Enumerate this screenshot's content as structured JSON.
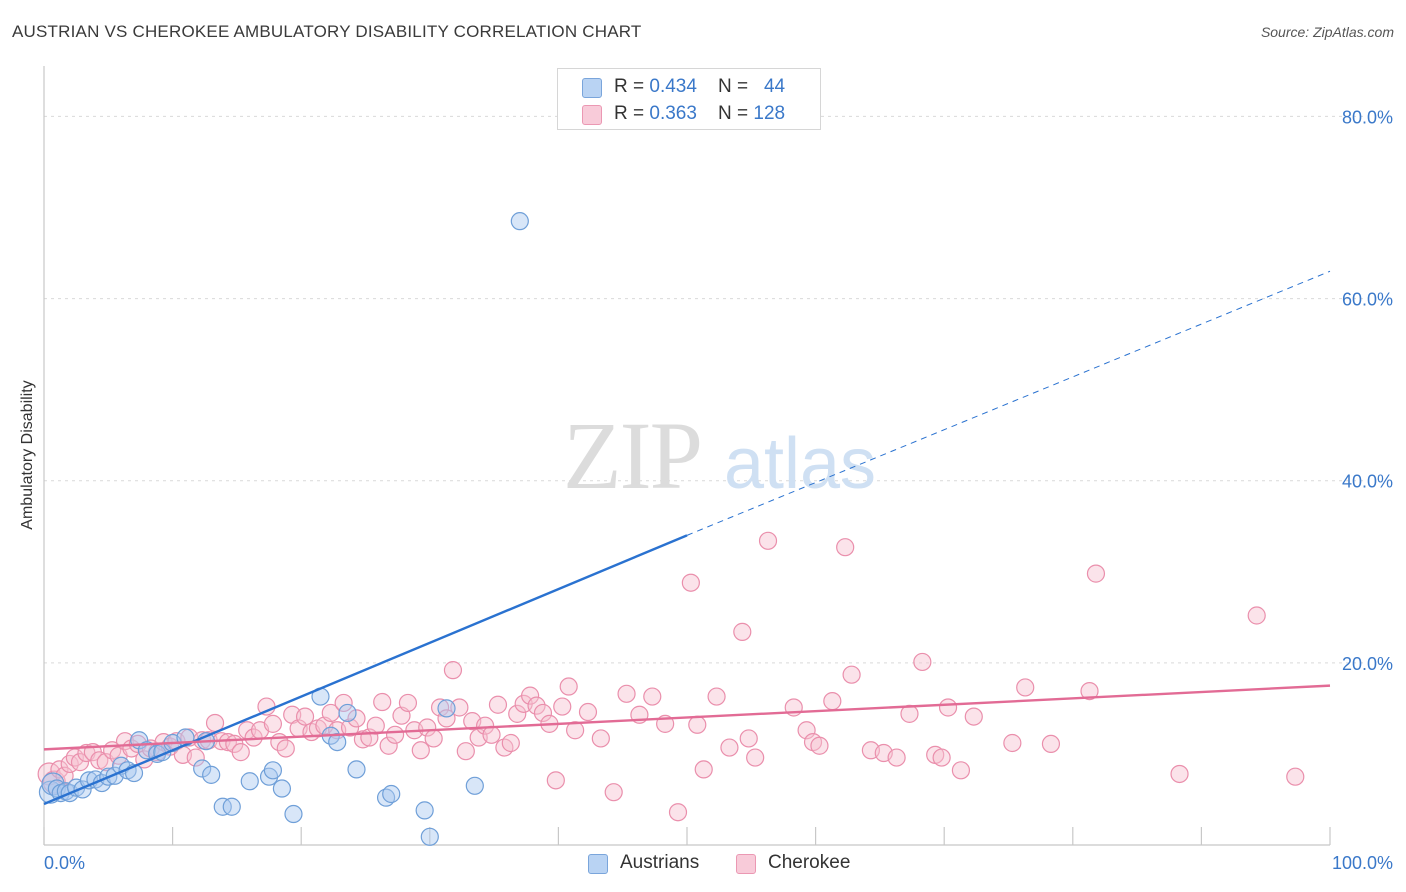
{
  "header": {
    "title": "AUSTRIAN VS CHEROKEE AMBULATORY DISABILITY CORRELATION CHART",
    "source": "Source: ZipAtlas.com"
  },
  "watermark": {
    "zip": "ZIP",
    "atlas": "atlas"
  },
  "legend_top": {
    "austrians": {
      "r_label": "R = ",
      "r_value": "0.434",
      "n_label": "N = ",
      "n_value": "44"
    },
    "cherokee": {
      "r_label": "R = ",
      "r_value": "0.363",
      "n_label": "N = ",
      "n_value": "128"
    }
  },
  "legend_bottom": {
    "austrians": "Austrians",
    "cherokee": "Cherokee"
  },
  "colors": {
    "austrians_fill": "#a9c8f0",
    "austrians_stroke": "#6f9fd8",
    "austrians_line": "#2a72d0",
    "cherokee_fill": "#f6c0d0",
    "cherokee_stroke": "#ea8fac",
    "cherokee_line": "#e26b95",
    "axis_text": "#3a78c9",
    "grid": "#d9d9d9"
  },
  "chart_data": {
    "type": "scatter",
    "title": "AUSTRIAN VS CHEROKEE AMBULATORY DISABILITY CORRELATION CHART",
    "xlabel": "",
    "ylabel": "Ambulatory Disability",
    "xlim": [
      0,
      100
    ],
    "ylim": [
      0,
      84
    ],
    "x_tick_labels": [
      "0.0%",
      "100.0%"
    ],
    "y_ticks": [
      20,
      40,
      60,
      80
    ],
    "y_tick_labels": [
      "20.0%",
      "40.0%",
      "60.0%",
      "80.0%"
    ],
    "grid": true,
    "legend_position": "top-center",
    "series": [
      {
        "name": "Austrians",
        "r": 0.434,
        "n": 44,
        "trend": {
          "x0": 0,
          "y0": 4.5,
          "x1": 50,
          "y1": 34,
          "dash_to_x": 100,
          "dash_to_y": 63
        },
        "points": [
          [
            0.5,
            5.8
          ],
          [
            0.7,
            6.7
          ],
          [
            1,
            6.2
          ],
          [
            1.3,
            5.7
          ],
          [
            1.7,
            5.9
          ],
          [
            2,
            5.7
          ],
          [
            2.5,
            6.3
          ],
          [
            3,
            6.1
          ],
          [
            3.5,
            7.1
          ],
          [
            4,
            7.2
          ],
          [
            4.5,
            6.8
          ],
          [
            5,
            7.5
          ],
          [
            5.5,
            7.6
          ],
          [
            6,
            8.7
          ],
          [
            6.5,
            8.2
          ],
          [
            7,
            7.9
          ],
          [
            7.4,
            11.5
          ],
          [
            8,
            10.4
          ],
          [
            8.8,
            10
          ],
          [
            9.2,
            10.2
          ],
          [
            10,
            11.2
          ],
          [
            11,
            11.8
          ],
          [
            12.3,
            8.4
          ],
          [
            13,
            7.7
          ],
          [
            13.9,
            4.2
          ],
          [
            14.6,
            4.2
          ],
          [
            16,
            7
          ],
          [
            17.5,
            7.5
          ],
          [
            17.8,
            8.2
          ],
          [
            18.5,
            6.2
          ],
          [
            19.4,
            3.4
          ],
          [
            21.5,
            16.3
          ],
          [
            22.3,
            12
          ],
          [
            22.8,
            11.3
          ],
          [
            23.6,
            14.5
          ],
          [
            24.3,
            8.3
          ],
          [
            26.6,
            5.2
          ],
          [
            27,
            5.6
          ],
          [
            29.6,
            3.8
          ],
          [
            30,
            0.9
          ],
          [
            31.3,
            15
          ],
          [
            33.5,
            6.5
          ],
          [
            12.6,
            11.4
          ],
          [
            37,
            68.5
          ]
        ]
      },
      {
        "name": "Cherokee",
        "r": 0.363,
        "n": 128,
        "trend": {
          "x0": 0,
          "y0": 10.5,
          "x1": 100,
          "y1": 17.5
        },
        "points": [
          [
            0.4,
            7.8
          ],
          [
            0.8,
            6.9
          ],
          [
            1.2,
            8.3
          ],
          [
            1.6,
            7.6
          ],
          [
            2,
            8.9
          ],
          [
            2.4,
            9.6
          ],
          [
            2.8,
            9.1
          ],
          [
            3.3,
            10.1
          ],
          [
            3.8,
            10.2
          ],
          [
            4.3,
            9.3
          ],
          [
            4.8,
            9.1
          ],
          [
            5.3,
            10.4
          ],
          [
            5.8,
            9.8
          ],
          [
            6.3,
            11.4
          ],
          [
            6.8,
            10.6
          ],
          [
            7.3,
            11.1
          ],
          [
            7.8,
            9.4
          ],
          [
            8.3,
            10.6
          ],
          [
            8.8,
            10.2
          ],
          [
            9.3,
            11.3
          ],
          [
            9.8,
            10.8
          ],
          [
            10.3,
            11.4
          ],
          [
            10.8,
            9.9
          ],
          [
            11.3,
            11.8
          ],
          [
            11.8,
            9.6
          ],
          [
            12.3,
            11.5
          ],
          [
            12.8,
            11.5
          ],
          [
            13.3,
            13.4
          ],
          [
            13.8,
            11.4
          ],
          [
            14.3,
            11.3
          ],
          [
            14.8,
            11.1
          ],
          [
            15.3,
            10.2
          ],
          [
            15.8,
            12.6
          ],
          [
            16.3,
            11.8
          ],
          [
            16.8,
            12.6
          ],
          [
            17.3,
            15.2
          ],
          [
            17.8,
            13.3
          ],
          [
            18.3,
            11.3
          ],
          [
            18.8,
            10.6
          ],
          [
            19.3,
            14.3
          ],
          [
            19.8,
            12.8
          ],
          [
            20.3,
            14.1
          ],
          [
            20.8,
            12.4
          ],
          [
            21.3,
            12.8
          ],
          [
            21.8,
            13.1
          ],
          [
            22.3,
            14.5
          ],
          [
            22.8,
            12.6
          ],
          [
            23.3,
            15.6
          ],
          [
            23.8,
            12.9
          ],
          [
            24.3,
            13.9
          ],
          [
            24.8,
            11.6
          ],
          [
            25.3,
            11.8
          ],
          [
            25.8,
            13.1
          ],
          [
            26.3,
            15.7
          ],
          [
            26.8,
            10.9
          ],
          [
            27.3,
            12.1
          ],
          [
            27.8,
            14.2
          ],
          [
            28.3,
            15.6
          ],
          [
            28.8,
            12.6
          ],
          [
            29.3,
            10.4
          ],
          [
            29.8,
            12.9
          ],
          [
            30.3,
            11.7
          ],
          [
            30.8,
            15.1
          ],
          [
            31.3,
            13.9
          ],
          [
            31.8,
            19.2
          ],
          [
            32.3,
            15.1
          ],
          [
            32.8,
            10.3
          ],
          [
            33.3,
            13.6
          ],
          [
            33.8,
            11.8
          ],
          [
            34.3,
            13.1
          ],
          [
            34.8,
            12.1
          ],
          [
            35.3,
            15.4
          ],
          [
            35.8,
            10.7
          ],
          [
            36.3,
            11.2
          ],
          [
            36.8,
            14.4
          ],
          [
            37.3,
            15.5
          ],
          [
            37.8,
            16.4
          ],
          [
            38.3,
            15.3
          ],
          [
            38.8,
            14.5
          ],
          [
            39.3,
            13.3
          ],
          [
            39.8,
            7.1
          ],
          [
            40.3,
            15.2
          ],
          [
            40.8,
            17.4
          ],
          [
            41.3,
            12.6
          ],
          [
            42.3,
            14.6
          ],
          [
            43.3,
            11.7
          ],
          [
            44.3,
            5.8
          ],
          [
            45.3,
            16.6
          ],
          [
            46.3,
            14.3
          ],
          [
            47.3,
            16.3
          ],
          [
            48.3,
            13.3
          ],
          [
            49.3,
            3.6
          ],
          [
            50.3,
            28.8
          ],
          [
            50.8,
            13.2
          ],
          [
            51.3,
            8.3
          ],
          [
            52.3,
            16.3
          ],
          [
            53.3,
            10.7
          ],
          [
            54.3,
            23.4
          ],
          [
            54.8,
            11.7
          ],
          [
            55.3,
            9.6
          ],
          [
            56.3,
            33.4
          ],
          [
            58.3,
            15.1
          ],
          [
            59.3,
            12.6
          ],
          [
            59.8,
            11.3
          ],
          [
            60.3,
            10.9
          ],
          [
            61.3,
            15.8
          ],
          [
            62.3,
            32.7
          ],
          [
            62.8,
            18.7
          ],
          [
            64.3,
            10.4
          ],
          [
            65.3,
            10.1
          ],
          [
            66.3,
            9.6
          ],
          [
            67.3,
            14.4
          ],
          [
            68.3,
            20.1
          ],
          [
            69.3,
            9.9
          ],
          [
            69.8,
            9.6
          ],
          [
            70.3,
            15.1
          ],
          [
            71.3,
            8.2
          ],
          [
            72.3,
            14.1
          ],
          [
            75.3,
            11.2
          ],
          [
            76.3,
            17.3
          ],
          [
            78.3,
            11.1
          ],
          [
            81.3,
            16.9
          ],
          [
            81.8,
            29.8
          ],
          [
            88.3,
            7.8
          ],
          [
            94.3,
            25.2
          ],
          [
            97.3,
            7.5
          ]
        ]
      }
    ]
  }
}
